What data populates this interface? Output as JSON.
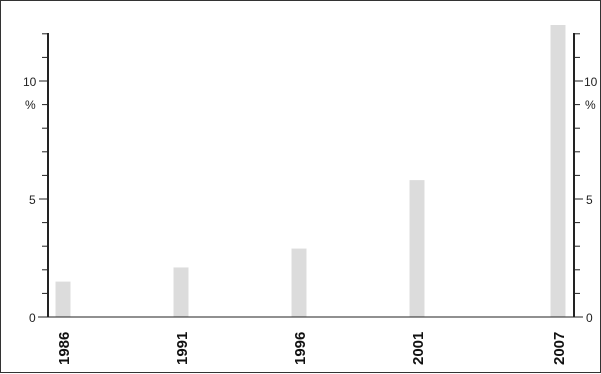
{
  "chart_data": {
    "type": "bar",
    "title": "",
    "xlabel": "",
    "ylabel": "",
    "y_unit": "%",
    "categories": [
      "1986",
      "1991",
      "1996",
      "2001",
      "2007"
    ],
    "x": [
      1986,
      1991,
      1996,
      2001,
      2007
    ],
    "values": [
      1.5,
      2.1,
      2.9,
      5.8,
      12.4
    ],
    "ylim": [
      0,
      12
    ],
    "yticks_labeled": [
      "0",
      "5",
      "10"
    ],
    "bar_color": "#dcdcdc",
    "axis_color": "#222222",
    "grid": false,
    "legend": "none"
  }
}
